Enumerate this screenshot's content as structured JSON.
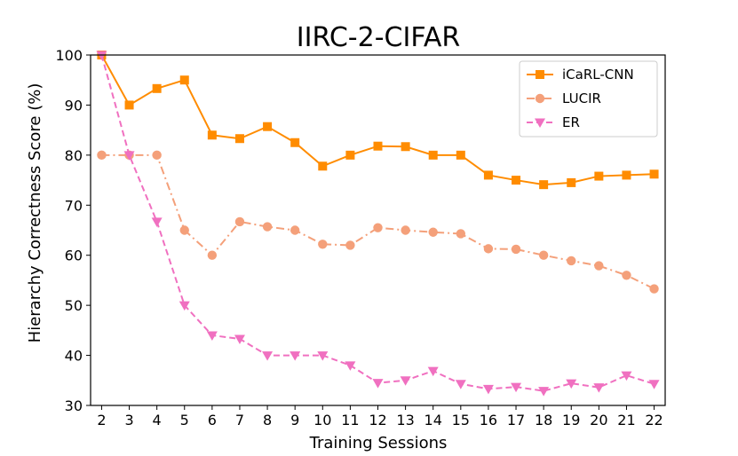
{
  "chart_data": {
    "type": "line",
    "title": "IIRC-2-CIFAR",
    "xlabel": "Training Sessions",
    "ylabel": "Hierarchy Correctness Score (%)",
    "x": [
      2,
      3,
      4,
      5,
      6,
      7,
      8,
      9,
      10,
      11,
      12,
      13,
      14,
      15,
      16,
      17,
      18,
      19,
      20,
      21,
      22
    ],
    "xlim": [
      1.6,
      22.4
    ],
    "ylim": [
      30,
      100
    ],
    "yticks": [
      30,
      40,
      50,
      60,
      70,
      80,
      90,
      100
    ],
    "grid": false,
    "legend_position": "top-right",
    "series": [
      {
        "name": "iCaRL-CNN",
        "color": "#ff8c00",
        "marker": "square",
        "line_style": "solid",
        "values": [
          100,
          90,
          93.3,
          95,
          84,
          83.3,
          85.7,
          82.5,
          77.8,
          80,
          81.8,
          81.7,
          80,
          80,
          76,
          75,
          74.1,
          74.5,
          75.8,
          76,
          76.2
        ]
      },
      {
        "name": "LUCIR",
        "color": "#f4a07a",
        "marker": "circle",
        "line_style": "dash-dot",
        "values": [
          80,
          80,
          80,
          65,
          60,
          66.7,
          65.7,
          65,
          62.2,
          62,
          65.5,
          65,
          64.6,
          64.3,
          61.3,
          61.2,
          60,
          58.9,
          57.9,
          56,
          53.3
        ]
      },
      {
        "name": "ER",
        "color": "#f070c0",
        "marker": "triangle-down",
        "line_style": "dashed",
        "values": [
          100,
          80,
          66.7,
          50,
          44,
          43.3,
          40,
          40,
          40,
          38,
          34.5,
          35,
          36.9,
          34.3,
          33.3,
          33.7,
          32.9,
          34.4,
          33.6,
          36,
          34.3
        ]
      }
    ]
  }
}
